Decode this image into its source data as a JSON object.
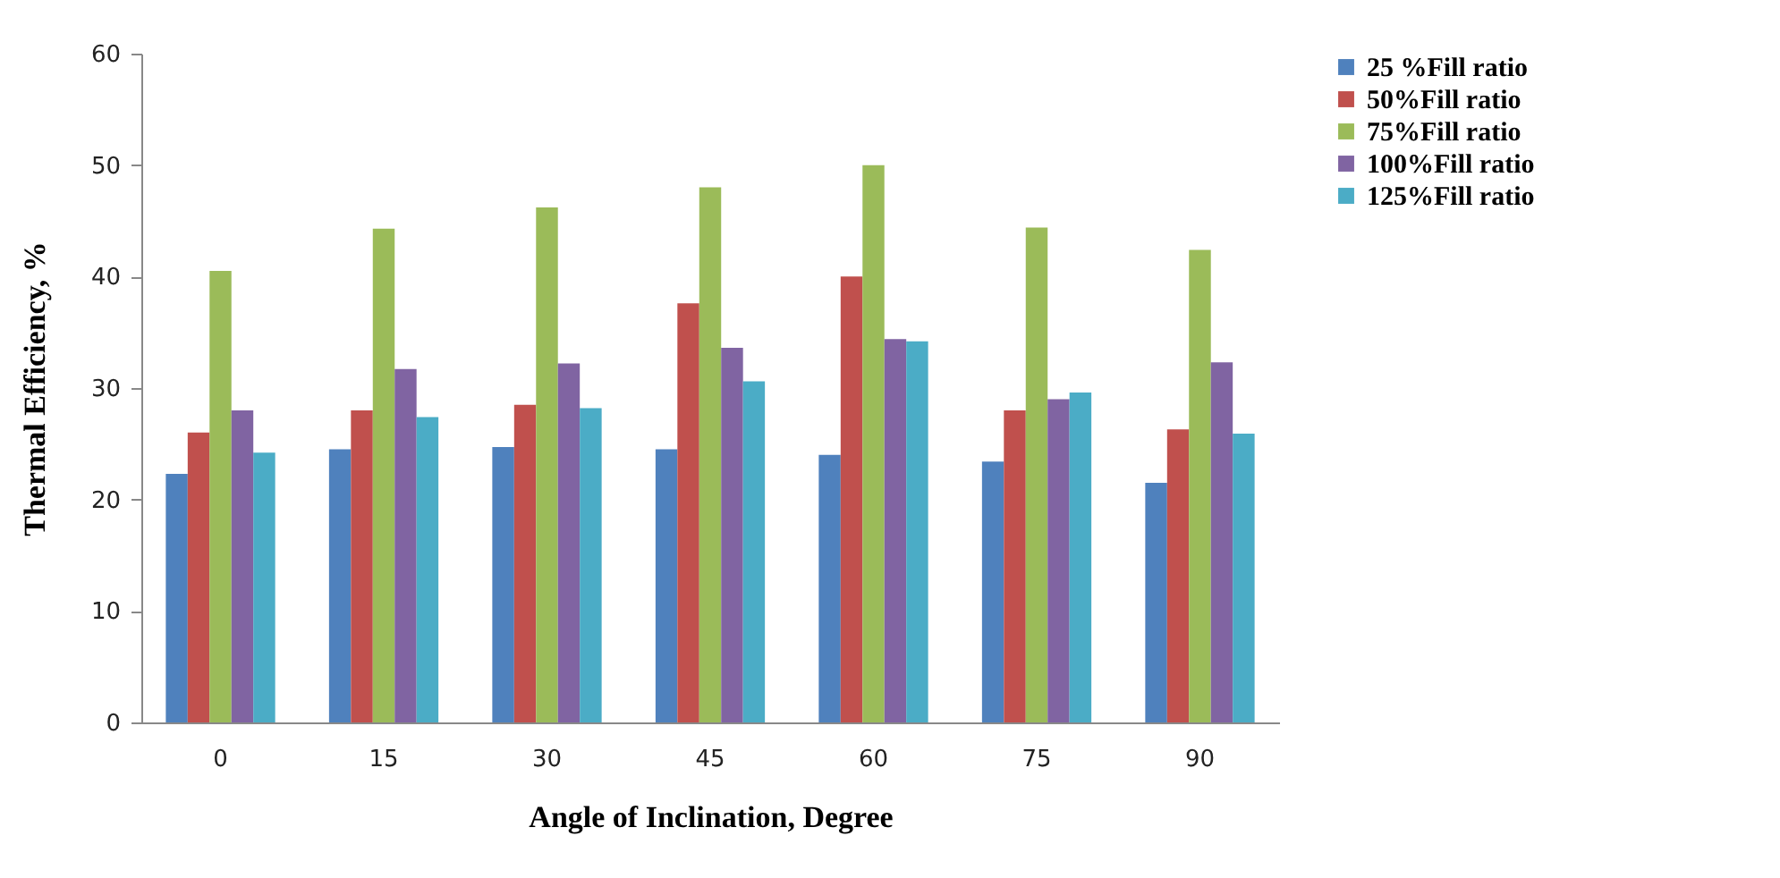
{
  "chart_data": {
    "type": "bar",
    "xlabel": "Angle of Inclination,  Degree",
    "ylabel": "Thermal Efficiency, %",
    "categories": [
      "0",
      "15",
      "30",
      "45",
      "60",
      "75",
      "90"
    ],
    "series": [
      {
        "name": "25 %Fill ratio",
        "color": "#4f81bd",
        "values": [
          22.3,
          24.5,
          24.7,
          24.5,
          24,
          23.4,
          21.5
        ]
      },
      {
        "name": "50%Fill ratio",
        "color": "#c0504d",
        "values": [
          26,
          28,
          28.5,
          37.6,
          40,
          28,
          26.3
        ]
      },
      {
        "name": "75%Fill ratio",
        "color": "#9bbb59",
        "values": [
          40.5,
          44.3,
          46.2,
          48,
          50,
          44.4,
          42.4
        ]
      },
      {
        "name": "100%Fill ratio",
        "color": "#8064a2",
        "values": [
          28,
          31.7,
          32.2,
          33.6,
          34.4,
          29,
          32.3
        ]
      },
      {
        "name": "125%Fill ratio",
        "color": "#4bacc6",
        "values": [
          24.2,
          27.4,
          28.2,
          30.6,
          34.2,
          29.6,
          25.9
        ]
      }
    ],
    "ylim": [
      0,
      60
    ],
    "yticks": [
      0,
      10,
      20,
      30,
      40,
      50,
      60
    ],
    "grid": false,
    "legend": "top right"
  }
}
